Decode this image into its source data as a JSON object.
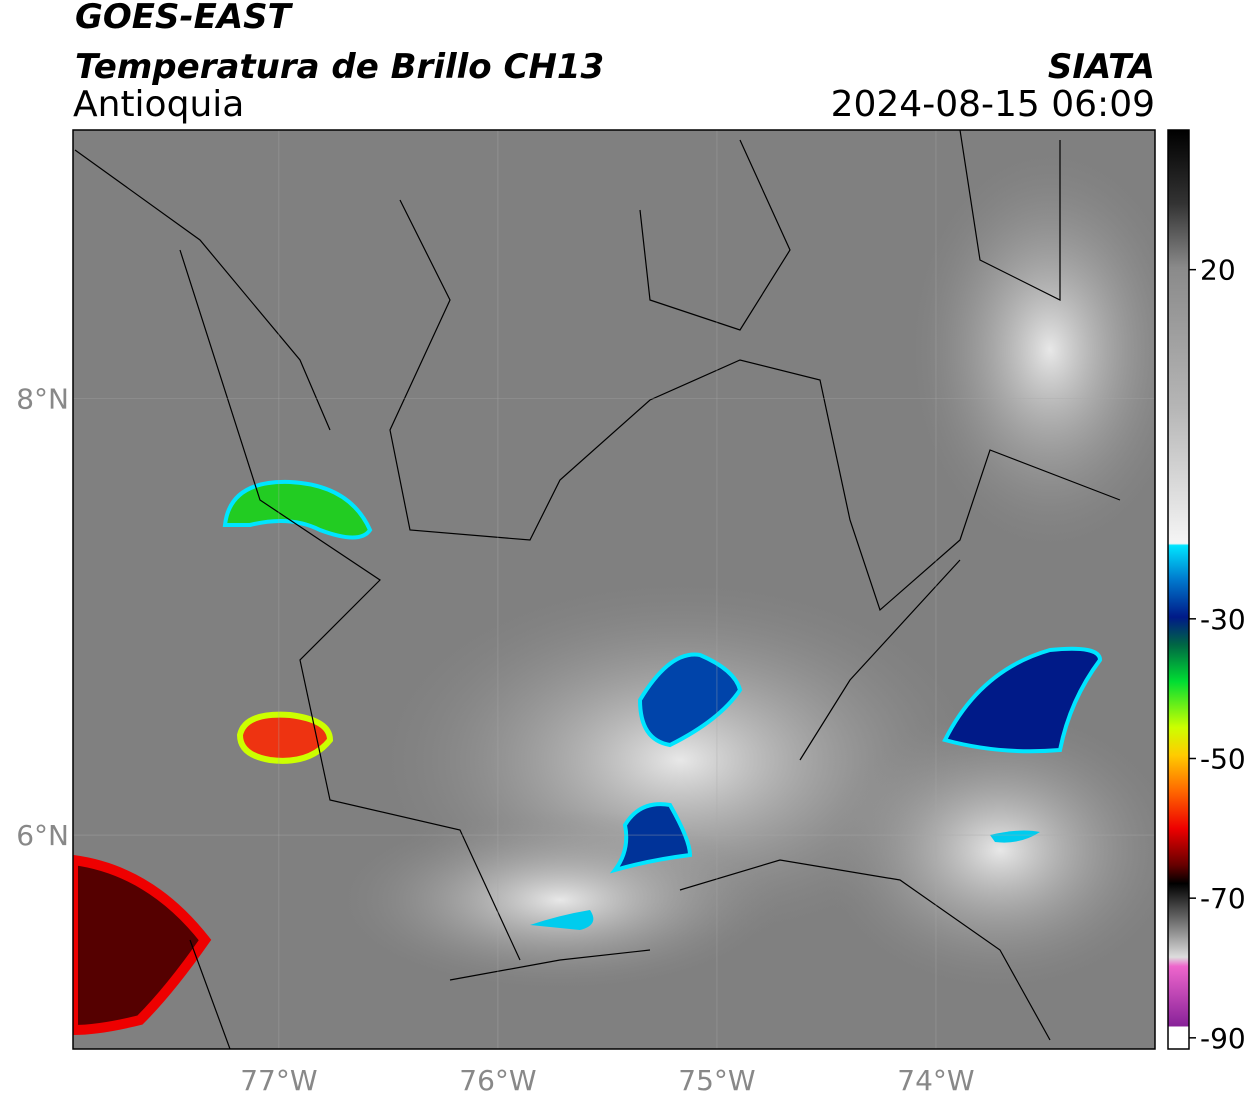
{
  "map": {
    "title": "GOES-EAST",
    "subtitle": "Temperatura de Brillo CH13",
    "region": "Antioquia",
    "source": "SIATA",
    "timestamp": "2024-08-15 06:09",
    "xlim": [
      -77.94,
      -73.0
    ],
    "ylim": [
      5.02,
      9.23
    ],
    "xticks": [
      {
        "value": -77,
        "label": "77°W"
      },
      {
        "value": -76,
        "label": "76°W"
      },
      {
        "value": -75,
        "label": "75°W"
      },
      {
        "value": -74,
        "label": "74°W"
      }
    ],
    "yticks": [
      {
        "value": 6,
        "label": "6°N"
      },
      {
        "value": 8,
        "label": "8°N"
      }
    ],
    "grid": true,
    "colorbar": {
      "clim": [
        -91.6,
        40
      ],
      "ticks": [
        20,
        -30,
        -50,
        -70,
        -90
      ]
    }
  }
}
